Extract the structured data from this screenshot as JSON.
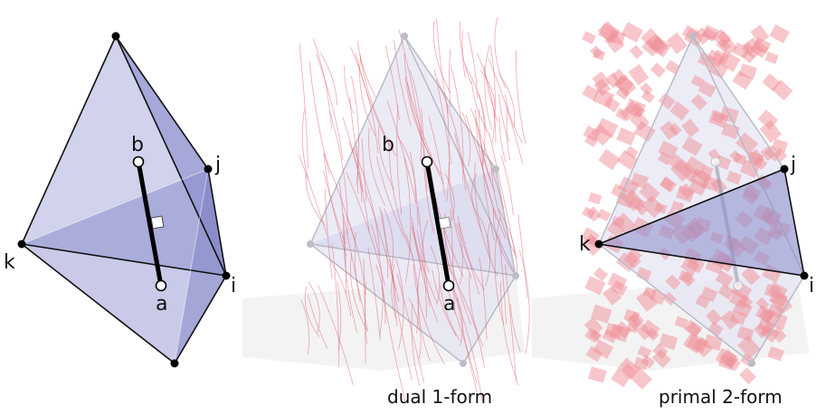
{
  "panels": [
    {
      "id": "primal",
      "caption": "",
      "vertices": [
        "b",
        "j",
        "k",
        "a",
        "i"
      ]
    },
    {
      "id": "dual-1-form",
      "caption": "dual 1-form",
      "vertices": [
        "b",
        "a"
      ]
    },
    {
      "id": "primal-2-form",
      "caption": "primal 2-form",
      "vertices": [
        "j",
        "k",
        "i"
      ]
    }
  ],
  "colors": {
    "face_fill": "#8a8ccc",
    "face_light": "#c9cae8",
    "edge": "#111111",
    "ghost_edge": "#b8b8c4",
    "stroke_red": "#e0606e",
    "patch_red": "#f08f98",
    "shadow": "#eeeeee"
  }
}
